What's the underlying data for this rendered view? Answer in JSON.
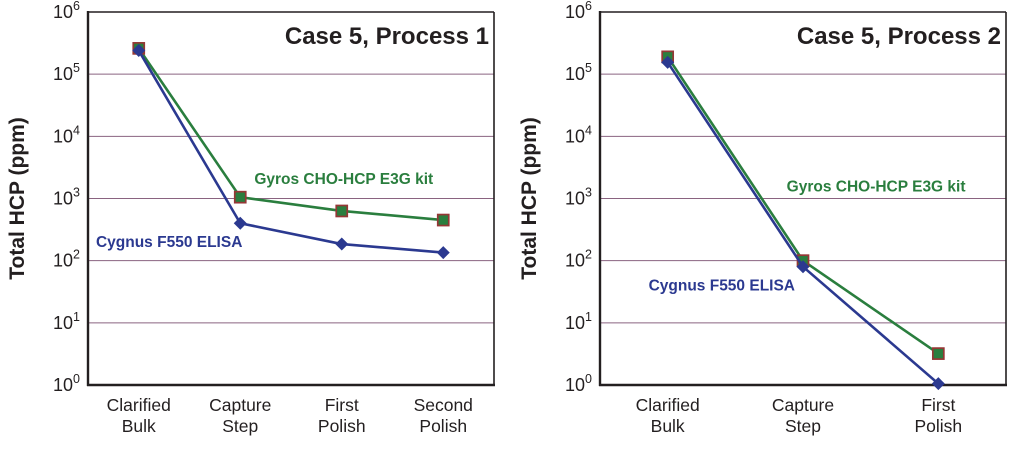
{
  "style": {
    "background": "#ffffff",
    "axis_color": "#231f20",
    "grid_color": "#8a6380",
    "title_color": "#231f20",
    "tick_color": "#231f20"
  },
  "chart_data": [
    {
      "type": "line",
      "title": "Case 5, Process 1",
      "ylabel": "Total HCP (ppm)",
      "yscale": "log",
      "ylim": [
        1,
        1000000
      ],
      "grid": true,
      "legend_position": "inline-annotations",
      "categories": [
        [
          "Clarified",
          "Bulk"
        ],
        [
          "Capture",
          "Step"
        ],
        [
          "First",
          "Polish"
        ],
        [
          "Second",
          "Polish"
        ]
      ],
      "series": [
        {
          "name": "Gyros CHO-HCP E3G kit",
          "color": "#2a7e3e",
          "marker": "square",
          "marker_edge": "#953735",
          "values": [
            260000,
            1050,
            630,
            450
          ],
          "label": {
            "fx": 0.63,
            "v": 1700
          }
        },
        {
          "name": "Cygnus F550 ELISA",
          "color": "#2b3990",
          "marker": "diamond",
          "marker_edge": "#2b3990",
          "values": [
            240000,
            400,
            185,
            135
          ],
          "label": {
            "fx": 0.2,
            "v": 165
          }
        }
      ]
    },
    {
      "type": "line",
      "title": "Case 5, Process 2",
      "ylabel": "Total HCP (ppm)",
      "yscale": "log",
      "ylim": [
        1,
        1000000
      ],
      "grid": true,
      "legend_position": "inline-annotations",
      "categories": [
        [
          "Clarified",
          "Bulk"
        ],
        [
          "Capture",
          "Step"
        ],
        [
          "First",
          "Polish"
        ]
      ],
      "series": [
        {
          "name": "Gyros CHO-HCP E3G kit",
          "color": "#2a7e3e",
          "marker": "square",
          "marker_edge": "#953735",
          "values": [
            190000,
            100,
            3.2
          ],
          "label": {
            "fx": 0.68,
            "v": 1300
          }
        },
        {
          "name": "Cygnus F550 ELISA",
          "color": "#2b3990",
          "marker": "diamond",
          "marker_edge": "#2b3990",
          "values": [
            155000,
            80,
            1.05
          ],
          "label": {
            "fx": 0.3,
            "v": 33
          }
        }
      ]
    }
  ]
}
